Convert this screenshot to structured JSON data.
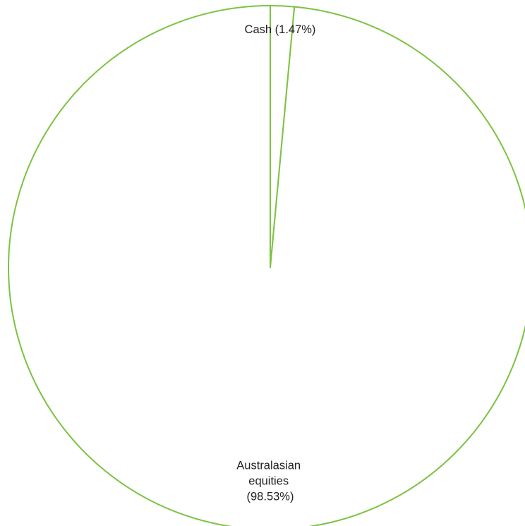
{
  "chart_data": {
    "type": "pie",
    "slices": [
      {
        "label_lines": [
          "Cash (1.47%)"
        ],
        "value": 1.47
      },
      {
        "label_lines": [
          "Australasian",
          "equities",
          "(98.53%)"
        ],
        "value": 98.53
      }
    ],
    "start_angle_deg": 0,
    "direction": "clockwise",
    "slice_fill": "#ffffff",
    "slice_stroke": "#7dc242",
    "label_color": "#222222",
    "legend": "none"
  }
}
